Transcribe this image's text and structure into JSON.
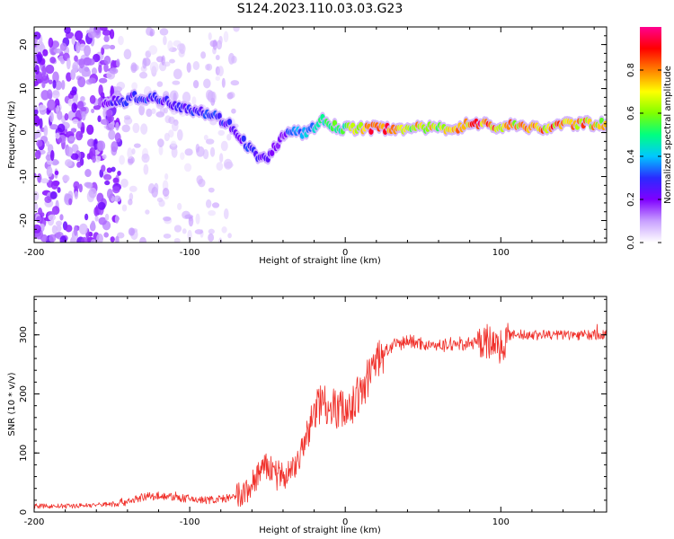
{
  "title": "S124.2023.110.03.03.G23",
  "colors": {
    "snr_line": "#f0302a",
    "colormap": [
      "#ffffff",
      "#c8a0ff",
      "#7f00ff",
      "#2a2aff",
      "#00c8ff",
      "#00ff80",
      "#80ff00",
      "#ffff00",
      "#ff8000",
      "#ff0000",
      "#ff0090"
    ]
  },
  "chart_data": [
    {
      "type": "heatmap",
      "title": "",
      "xlabel": "Height of straight line (km)",
      "ylabel": "Frequency (Hz)",
      "xlim": [
        -200,
        168
      ],
      "ylim": [
        -25,
        24
      ],
      "x_ticks": [
        -200,
        -100,
        0,
        100
      ],
      "y_ticks": [
        -20,
        -10,
        0,
        10,
        20
      ],
      "colorbar": {
        "label": "Normalized spectral amplitude",
        "range": [
          0,
          1
        ],
        "ticks": [
          0.0,
          0.2,
          0.4,
          0.6,
          0.8
        ]
      },
      "ridge": {
        "x": [
          -155,
          -145,
          -135,
          -125,
          -115,
          -105,
          -95,
          -85,
          -80,
          -75,
          -70,
          -65,
          -60,
          -55,
          -50,
          -45,
          -40,
          -35,
          -30,
          -25,
          -20,
          -15,
          -10,
          -5,
          0,
          10,
          20,
          30,
          40,
          50,
          60,
          70,
          80,
          90,
          100,
          110,
          120,
          130,
          140,
          150,
          160,
          168
        ],
        "y": [
          7,
          7,
          8,
          8,
          7,
          6,
          5,
          4,
          3,
          2,
          0,
          -2,
          -4,
          -6,
          -6,
          -3,
          -1,
          0,
          0,
          0,
          1,
          3,
          2,
          1,
          1,
          1,
          1,
          1,
          1,
          1,
          1,
          1,
          2,
          2,
          1,
          2,
          1,
          1,
          2,
          2,
          2,
          2
        ],
        "amplitude": [
          0.2,
          0.3,
          0.3,
          0.3,
          0.3,
          0.3,
          0.3,
          0.3,
          0.3,
          0.3,
          0.2,
          0.3,
          0.3,
          0.25,
          0.25,
          0.2,
          0.2,
          0.35,
          0.4,
          0.4,
          0.45,
          0.5,
          0.5,
          0.55,
          0.6,
          0.75,
          0.9,
          0.85,
          0.7,
          0.75,
          0.7,
          0.75,
          0.85,
          0.9,
          0.8,
          0.75,
          0.75,
          0.8,
          0.85,
          0.8,
          0.75,
          0.75
        ]
      }
    },
    {
      "type": "line",
      "title": "",
      "xlabel": "Height of straight line (km)",
      "ylabel": "SNR (10 * v/v)",
      "xlim": [
        -200,
        168
      ],
      "ylim": [
        0,
        365
      ],
      "x_ticks": [
        -200,
        -100,
        0,
        100
      ],
      "y_ticks": [
        0,
        100,
        200,
        300
      ],
      "series": [
        {
          "x": [
            -200,
            -180,
            -160,
            -150,
            -140,
            -130,
            -120,
            -110,
            -100,
            -90,
            -80,
            -70,
            -65,
            -60,
            -55,
            -50,
            -45,
            -40,
            -35,
            -30,
            -25,
            -20,
            -15,
            -10,
            -5,
            0,
            5,
            10,
            15,
            20,
            25,
            30,
            40,
            50,
            60,
            70,
            80,
            90,
            95,
            100,
            105,
            110,
            120,
            130,
            140,
            150,
            160,
            168
          ],
          "y": [
            10,
            10,
            12,
            14,
            18,
            25,
            28,
            25,
            22,
            20,
            22,
            25,
            30,
            45,
            70,
            75,
            70,
            60,
            70,
            90,
            120,
            170,
            190,
            180,
            175,
            175,
            185,
            200,
            230,
            255,
            270,
            280,
            290,
            285,
            280,
            285,
            285,
            290,
            285,
            280,
            300,
            300,
            300,
            300,
            300,
            300,
            300,
            300
          ]
        }
      ]
    }
  ]
}
